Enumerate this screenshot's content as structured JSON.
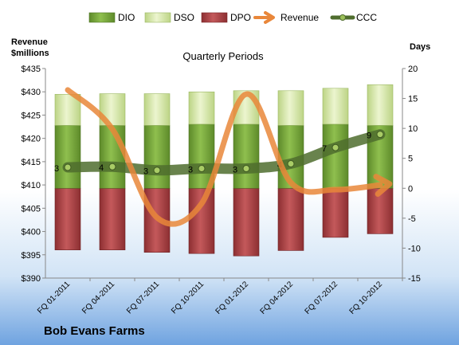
{
  "chart_data": {
    "type": "bar",
    "title": "Quarterly Periods",
    "subtitle": "",
    "company": "Bob Evans Farms",
    "left_axis_label_line1": "Revenue",
    "left_axis_label_line2": "$millions",
    "right_axis_label": "Days",
    "categories": [
      "FQ 01-2011",
      "FQ 04-2011",
      "FQ 07-2011",
      "FQ 10-2011",
      "FQ 01-2012",
      "FQ 04-2012",
      "FQ 07-2012",
      "FQ 10-2012"
    ],
    "left_ylim": [
      390,
      435
    ],
    "left_ticks": [
      390,
      395,
      400,
      405,
      410,
      415,
      420,
      425,
      430,
      435
    ],
    "left_tick_labels": [
      "$390",
      "$395",
      "$400",
      "$405",
      "$410",
      "$415",
      "$420",
      "$425",
      "$430",
      "$435"
    ],
    "right_ylim": [
      -15,
      20
    ],
    "right_ticks": [
      -15,
      -10,
      -5,
      0,
      5,
      10,
      15,
      20
    ],
    "right_tick_labels": [
      "-15",
      "-10",
      "-5",
      "0",
      "5",
      "10",
      "15",
      "20"
    ],
    "series": [
      {
        "name": "DIO",
        "kind": "bar",
        "color": "#7faa3e",
        "values": [
          10.5,
          10.5,
          10.5,
          10.7,
          10.7,
          10.5,
          10.7,
          10.5
        ]
      },
      {
        "name": "DSO",
        "kind": "bar",
        "color": "#d7e8a8",
        "values": [
          5.2,
          5.3,
          5.3,
          5.4,
          5.6,
          5.8,
          6.0,
          6.8
        ]
      },
      {
        "name": "DPO",
        "kind": "bar",
        "color": "#b34a4c",
        "values": [
          -10.3,
          -10.3,
          -10.7,
          -10.9,
          -11.3,
          -10.4,
          -8.2,
          -7.6
        ]
      },
      {
        "name": "Revenue",
        "kind": "line",
        "color": "#e9873a",
        "values": [
          430.4,
          422,
          403,
          406,
          429.5,
          410.5,
          409,
          410
        ]
      },
      {
        "name": "CCC",
        "kind": "line",
        "color": "#4f6d2e",
        "values": [
          3.5,
          3.6,
          3.0,
          3.3,
          3.3,
          4.1,
          6.8,
          9.0
        ],
        "labels": [
          "3",
          "4",
          "3",
          "3",
          "3",
          "4",
          "7",
          "9"
        ]
      }
    ],
    "grid": false,
    "legend_position": "top"
  }
}
